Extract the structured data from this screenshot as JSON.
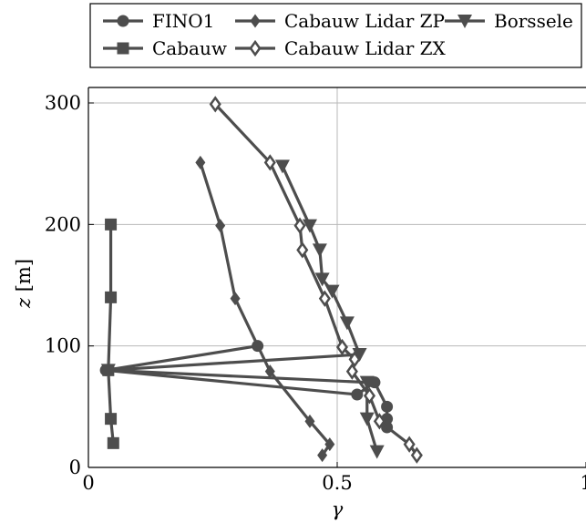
{
  "chart_data": {
    "type": "line",
    "xlabel": "γ",
    "ylabel_var": "z",
    "ylabel_unit": " [m]",
    "xlim": [
      0,
      1
    ],
    "ylim": [
      0,
      310
    ],
    "x_ticks": [
      {
        "value": 0,
        "label": "0"
      },
      {
        "value": 0.5,
        "label": "0.5"
      },
      {
        "value": 1,
        "label": "1"
      }
    ],
    "y_ticks": [
      {
        "value": 0,
        "label": "0"
      },
      {
        "value": 100,
        "label": "100"
      },
      {
        "value": 200,
        "label": "200"
      },
      {
        "value": 300,
        "label": "300"
      }
    ],
    "grid": true,
    "legend_position": "top (above plot)",
    "line_color": "#4d4d4d",
    "series": [
      {
        "name": "FINO1",
        "marker": "circle",
        "points": [
          [
            0.34,
            100
          ],
          [
            0.035,
            80
          ],
          [
            0.54,
            60
          ],
          [
            0.575,
            70
          ],
          [
            0.6,
            50
          ],
          [
            0.6,
            40
          ],
          [
            0.6,
            33
          ]
        ]
      },
      {
        "name": "Cabauw Lidar ZP",
        "marker": "diamond-filled",
        "points": [
          [
            0.225,
            251
          ],
          [
            0.265,
            199
          ],
          [
            0.295,
            139
          ],
          [
            0.365,
            79
          ],
          [
            0.445,
            38
          ],
          [
            0.485,
            19
          ],
          [
            0.47,
            10
          ]
        ]
      },
      {
        "name": "Borssele",
        "marker": "triangle-down",
        "points": [
          [
            0.39,
            248
          ],
          [
            0.445,
            199
          ],
          [
            0.465,
            179
          ],
          [
            0.47,
            155
          ],
          [
            0.49,
            145
          ],
          [
            0.52,
            119
          ],
          [
            0.545,
            93
          ],
          [
            0.04,
            80
          ],
          [
            0.56,
            70
          ],
          [
            0.56,
            40
          ],
          [
            0.58,
            13
          ]
        ]
      },
      {
        "name": "Cabauw",
        "marker": "square",
        "points": [
          [
            0.05,
            20
          ],
          [
            0.045,
            40
          ],
          [
            0.04,
            80
          ],
          [
            0.045,
            140
          ],
          [
            0.045,
            200
          ]
        ]
      },
      {
        "name": "Cabauw Lidar ZX",
        "marker": "diamond-open",
        "points": [
          [
            0.255,
            299
          ],
          [
            0.365,
            251
          ],
          [
            0.425,
            199
          ],
          [
            0.43,
            179
          ],
          [
            0.475,
            139
          ],
          [
            0.51,
            99
          ],
          [
            0.535,
            89
          ],
          [
            0.53,
            79
          ],
          [
            0.565,
            59
          ],
          [
            0.585,
            38
          ],
          [
            0.645,
            19
          ],
          [
            0.66,
            10
          ]
        ]
      }
    ]
  }
}
